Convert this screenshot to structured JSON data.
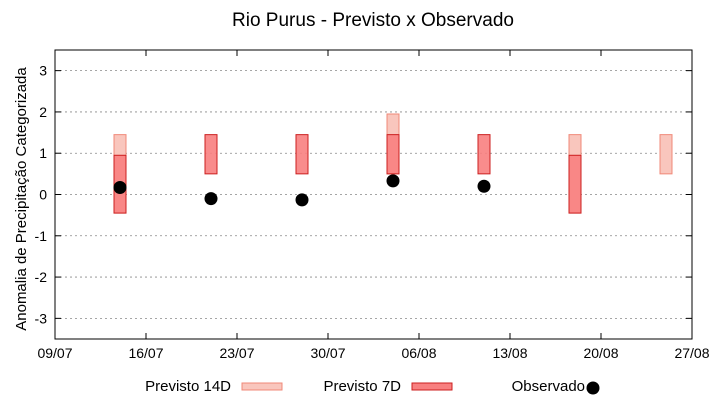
{
  "chart_data": {
    "type": "range-bar-scatter",
    "title": "Rio Purus - Previsto x Observado",
    "xlabel": "",
    "ylabel": "Anomalia de Precipitação Categorizada",
    "xlim": [
      "2023-07-09",
      "2023-08-27"
    ],
    "ylim": [
      -3.5,
      3.5
    ],
    "x_ticks": [
      "2023-07-09",
      "2023-07-16",
      "2023-07-23",
      "2023-07-30",
      "2023-08-06",
      "2023-08-13",
      "2023-08-20",
      "2023-08-27"
    ],
    "x_tick_labels": [
      "09/07",
      "16/07",
      "23/07",
      "30/07",
      "06/08",
      "13/08",
      "20/08",
      "27/08"
    ],
    "y_ticks": [
      -3,
      -2,
      -1,
      0,
      1,
      2,
      3
    ],
    "grid": "horizontal dotted",
    "legend_position": "bottom",
    "series": [
      {
        "name": "Previsto 14D",
        "kind": "range",
        "color": "#f9c6bd",
        "stroke": "#f08878",
        "points": [
          {
            "x": "2023-07-14",
            "low": -0.45,
            "high": 1.45
          },
          {
            "x": "2023-08-04",
            "low": 0.5,
            "high": 1.95
          },
          {
            "x": "2023-08-18",
            "low": -0.45,
            "high": 1.45
          },
          {
            "x": "2023-08-25",
            "low": 0.5,
            "high": 1.45
          }
        ]
      },
      {
        "name": "Previsto 7D",
        "kind": "range",
        "color": "#f88080",
        "stroke": "#cc1f1f",
        "points": [
          {
            "x": "2023-07-14",
            "low": -0.45,
            "high": 0.95
          },
          {
            "x": "2023-07-21",
            "low": 0.5,
            "high": 1.45
          },
          {
            "x": "2023-07-28",
            "low": 0.5,
            "high": 1.45
          },
          {
            "x": "2023-08-04",
            "low": 0.5,
            "high": 1.45
          },
          {
            "x": "2023-08-11",
            "low": 0.5,
            "high": 1.45
          },
          {
            "x": "2023-08-18",
            "low": -0.45,
            "high": 0.95
          }
        ]
      },
      {
        "name": "Observado",
        "kind": "scatter",
        "color": "#000000",
        "points": [
          {
            "x": "2023-07-14",
            "y": 0.17
          },
          {
            "x": "2023-07-21",
            "y": -0.1
          },
          {
            "x": "2023-07-28",
            "y": -0.13
          },
          {
            "x": "2023-08-04",
            "y": 0.33
          },
          {
            "x": "2023-08-11",
            "y": 0.2
          }
        ]
      }
    ]
  }
}
